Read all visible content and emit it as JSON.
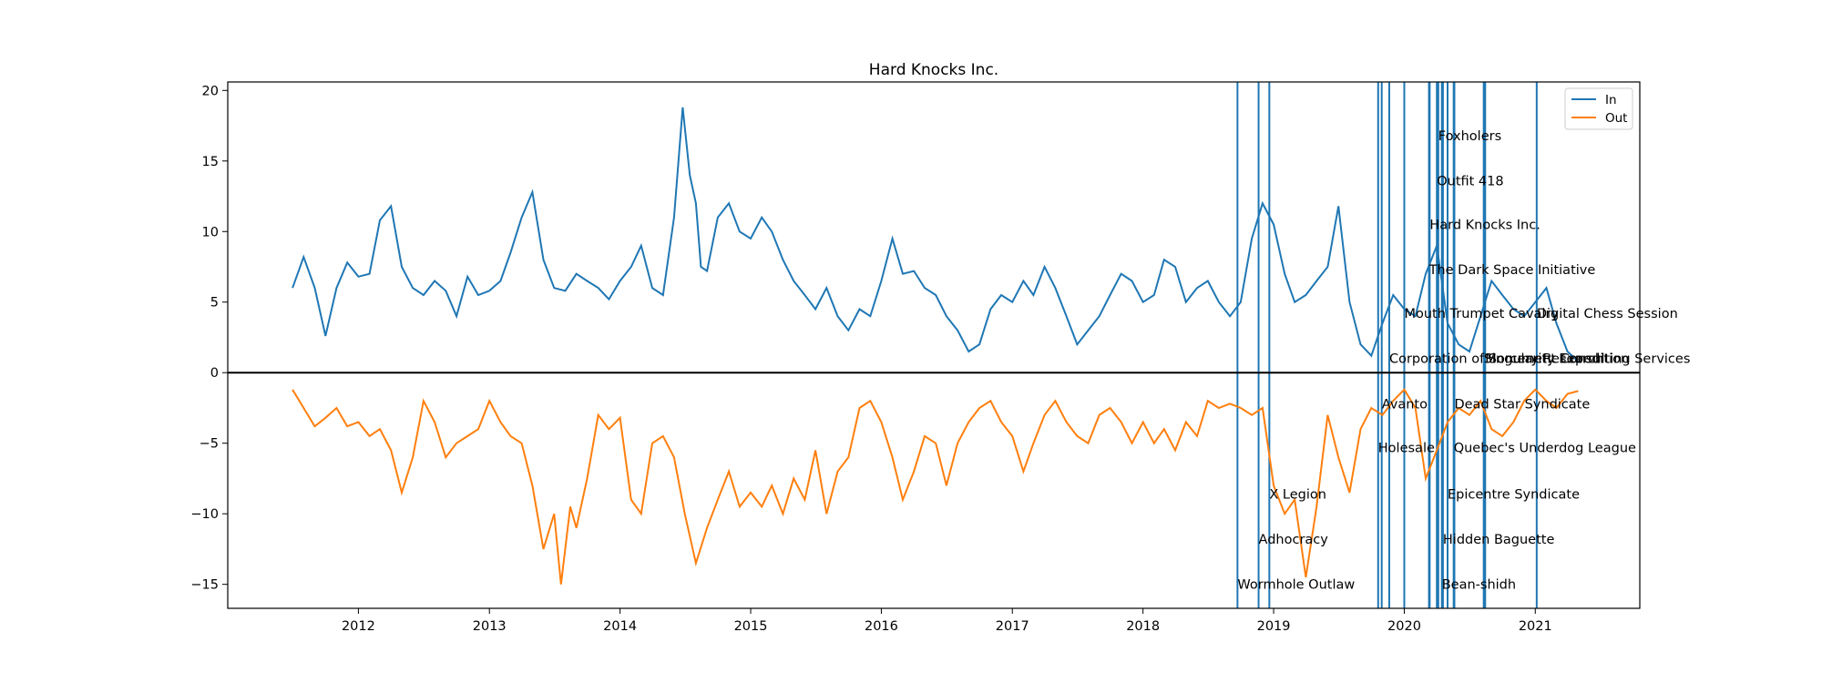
{
  "chart_data": {
    "type": "line",
    "title": "Hard Knocks Inc.",
    "xlabel": "",
    "ylabel": "",
    "xlim": [
      "2011-01-01",
      "2021-10-20"
    ],
    "ylim": [
      -16.7,
      20.6
    ],
    "x_ticks": [
      "2012",
      "2013",
      "2014",
      "2015",
      "2016",
      "2017",
      "2018",
      "2019",
      "2020",
      "2021"
    ],
    "y_ticks": [
      20,
      15,
      10,
      5,
      0,
      -5,
      -10,
      -15
    ],
    "grid": false,
    "legend_position": "top-right",
    "zero_line": true,
    "colors": {
      "in": "#1f77b4",
      "out": "#ff7f0e",
      "event": "#1f77b4",
      "zero": "#000000"
    },
    "series": [
      {
        "name": "In",
        "key": "in",
        "points": [
          [
            "2011-07-01",
            6.0
          ],
          [
            "2011-08-01",
            8.2
          ],
          [
            "2011-09-01",
            6.0
          ],
          [
            "2011-10-01",
            2.6
          ],
          [
            "2011-11-01",
            6.0
          ],
          [
            "2011-12-01",
            7.8
          ],
          [
            "2012-01-01",
            6.8
          ],
          [
            "2012-02-01",
            7.0
          ],
          [
            "2012-03-01",
            10.8
          ],
          [
            "2012-04-01",
            11.8
          ],
          [
            "2012-05-01",
            7.5
          ],
          [
            "2012-06-01",
            6.0
          ],
          [
            "2012-07-01",
            5.5
          ],
          [
            "2012-08-01",
            6.5
          ],
          [
            "2012-09-01",
            5.8
          ],
          [
            "2012-10-01",
            4.0
          ],
          [
            "2012-11-01",
            6.8
          ],
          [
            "2012-12-01",
            5.5
          ],
          [
            "2013-01-01",
            5.8
          ],
          [
            "2013-02-01",
            6.5
          ],
          [
            "2013-03-01",
            8.5
          ],
          [
            "2013-04-01",
            11.0
          ],
          [
            "2013-05-01",
            12.8
          ],
          [
            "2013-06-01",
            8.0
          ],
          [
            "2013-07-01",
            6.0
          ],
          [
            "2013-08-01",
            5.8
          ],
          [
            "2013-09-01",
            7.0
          ],
          [
            "2013-10-01",
            6.5
          ],
          [
            "2013-11-01",
            6.0
          ],
          [
            "2013-12-01",
            5.2
          ],
          [
            "2014-01-01",
            6.5
          ],
          [
            "2014-02-01",
            7.5
          ],
          [
            "2014-03-01",
            9.0
          ],
          [
            "2014-04-01",
            6.0
          ],
          [
            "2014-05-01",
            5.5
          ],
          [
            "2014-06-01",
            11.0
          ],
          [
            "2014-06-25",
            18.8
          ],
          [
            "2014-07-15",
            14.0
          ],
          [
            "2014-08-01",
            12.0
          ],
          [
            "2014-08-15",
            7.5
          ],
          [
            "2014-09-01",
            7.2
          ],
          [
            "2014-10-01",
            11.0
          ],
          [
            "2014-11-01",
            12.0
          ],
          [
            "2014-12-01",
            10.0
          ],
          [
            "2015-01-01",
            9.5
          ],
          [
            "2015-02-01",
            11.0
          ],
          [
            "2015-03-01",
            10.0
          ],
          [
            "2015-04-01",
            8.0
          ],
          [
            "2015-05-01",
            6.5
          ],
          [
            "2015-06-01",
            5.5
          ],
          [
            "2015-07-01",
            4.5
          ],
          [
            "2015-08-01",
            6.0
          ],
          [
            "2015-09-01",
            4.0
          ],
          [
            "2015-10-01",
            3.0
          ],
          [
            "2015-11-01",
            4.5
          ],
          [
            "2015-12-01",
            4.0
          ],
          [
            "2016-01-01",
            6.5
          ],
          [
            "2016-02-01",
            9.5
          ],
          [
            "2016-03-01",
            7.0
          ],
          [
            "2016-04-01",
            7.2
          ],
          [
            "2016-05-01",
            6.0
          ],
          [
            "2016-06-01",
            5.5
          ],
          [
            "2016-07-01",
            4.0
          ],
          [
            "2016-08-01",
            3.0
          ],
          [
            "2016-09-01",
            1.5
          ],
          [
            "2016-10-01",
            2.0
          ],
          [
            "2016-11-01",
            4.5
          ],
          [
            "2016-12-01",
            5.5
          ],
          [
            "2017-01-01",
            5.0
          ],
          [
            "2017-02-01",
            6.5
          ],
          [
            "2017-03-01",
            5.5
          ],
          [
            "2017-04-01",
            7.5
          ],
          [
            "2017-05-01",
            6.0
          ],
          [
            "2017-06-01",
            4.0
          ],
          [
            "2017-07-01",
            2.0
          ],
          [
            "2017-08-01",
            3.0
          ],
          [
            "2017-09-01",
            4.0
          ],
          [
            "2017-10-01",
            5.5
          ],
          [
            "2017-11-01",
            7.0
          ],
          [
            "2017-12-01",
            6.5
          ],
          [
            "2018-01-01",
            5.0
          ],
          [
            "2018-02-01",
            5.5
          ],
          [
            "2018-03-01",
            8.0
          ],
          [
            "2018-04-01",
            7.5
          ],
          [
            "2018-05-01",
            5.0
          ],
          [
            "2018-06-01",
            6.0
          ],
          [
            "2018-07-01",
            6.5
          ],
          [
            "2018-08-01",
            5.0
          ],
          [
            "2018-09-01",
            4.0
          ],
          [
            "2018-10-01",
            5.0
          ],
          [
            "2018-11-01",
            9.5
          ],
          [
            "2018-12-01",
            12.0
          ],
          [
            "2019-01-01",
            10.5
          ],
          [
            "2019-02-01",
            7.0
          ],
          [
            "2019-03-01",
            5.0
          ],
          [
            "2019-04-01",
            5.5
          ],
          [
            "2019-05-01",
            6.5
          ],
          [
            "2019-06-01",
            7.5
          ],
          [
            "2019-07-01",
            11.8
          ],
          [
            "2019-08-01",
            5.0
          ],
          [
            "2019-09-01",
            2.0
          ],
          [
            "2019-10-01",
            1.2
          ],
          [
            "2019-11-01",
            3.5
          ],
          [
            "2019-12-01",
            5.5
          ],
          [
            "2020-01-01",
            4.5
          ],
          [
            "2020-02-01",
            4.0
          ],
          [
            "2020-03-01",
            7.0
          ],
          [
            "2020-04-01",
            9.0
          ],
          [
            "2020-05-01",
            3.5
          ],
          [
            "2020-06-01",
            2.0
          ],
          [
            "2020-07-01",
            1.5
          ],
          [
            "2020-08-01",
            4.0
          ],
          [
            "2020-09-01",
            6.5
          ],
          [
            "2020-10-01",
            5.5
          ],
          [
            "2020-11-01",
            4.5
          ],
          [
            "2020-12-01",
            4.0
          ],
          [
            "2021-01-01",
            5.0
          ],
          [
            "2021-02-01",
            6.0
          ],
          [
            "2021-03-01",
            3.5
          ],
          [
            "2021-04-01",
            1.5
          ],
          [
            "2021-05-01",
            0.8
          ]
        ]
      },
      {
        "name": "Out",
        "key": "out",
        "points": [
          [
            "2011-07-01",
            -1.2
          ],
          [
            "2011-08-01",
            -2.5
          ],
          [
            "2011-09-01",
            -3.8
          ],
          [
            "2011-10-01",
            -3.2
          ],
          [
            "2011-11-01",
            -2.5
          ],
          [
            "2011-12-01",
            -3.8
          ],
          [
            "2012-01-01",
            -3.5
          ],
          [
            "2012-02-01",
            -4.5
          ],
          [
            "2012-03-01",
            -4.0
          ],
          [
            "2012-04-01",
            -5.5
          ],
          [
            "2012-05-01",
            -8.5
          ],
          [
            "2012-06-01",
            -6.0
          ],
          [
            "2012-07-01",
            -2.0
          ],
          [
            "2012-08-01",
            -3.5
          ],
          [
            "2012-09-01",
            -6.0
          ],
          [
            "2012-10-01",
            -5.0
          ],
          [
            "2012-11-01",
            -4.5
          ],
          [
            "2012-12-01",
            -4.0
          ],
          [
            "2013-01-01",
            -2.0
          ],
          [
            "2013-02-01",
            -3.5
          ],
          [
            "2013-03-01",
            -4.5
          ],
          [
            "2013-04-01",
            -5.0
          ],
          [
            "2013-05-01",
            -8.0
          ],
          [
            "2013-06-01",
            -12.5
          ],
          [
            "2013-07-01",
            -10.0
          ],
          [
            "2013-07-20",
            -15.0
          ],
          [
            "2013-08-15",
            -9.5
          ],
          [
            "2013-09-01",
            -11.0
          ],
          [
            "2013-10-01",
            -7.5
          ],
          [
            "2013-11-01",
            -3.0
          ],
          [
            "2013-12-01",
            -4.0
          ],
          [
            "2014-01-01",
            -3.2
          ],
          [
            "2014-02-01",
            -9.0
          ],
          [
            "2014-03-01",
            -10.0
          ],
          [
            "2014-04-01",
            -5.0
          ],
          [
            "2014-05-01",
            -4.5
          ],
          [
            "2014-06-01",
            -6.0
          ],
          [
            "2014-07-01",
            -10.0
          ],
          [
            "2014-08-01",
            -13.5
          ],
          [
            "2014-09-01",
            -11.0
          ],
          [
            "2014-10-01",
            -9.0
          ],
          [
            "2014-11-01",
            -7.0
          ],
          [
            "2014-12-01",
            -9.5
          ],
          [
            "2015-01-01",
            -8.5
          ],
          [
            "2015-02-01",
            -9.5
          ],
          [
            "2015-03-01",
            -8.0
          ],
          [
            "2015-04-01",
            -10.0
          ],
          [
            "2015-05-01",
            -7.5
          ],
          [
            "2015-06-01",
            -9.0
          ],
          [
            "2015-07-01",
            -5.5
          ],
          [
            "2015-08-01",
            -10.0
          ],
          [
            "2015-09-01",
            -7.0
          ],
          [
            "2015-10-01",
            -6.0
          ],
          [
            "2015-11-01",
            -2.5
          ],
          [
            "2015-12-01",
            -2.0
          ],
          [
            "2016-01-01",
            -3.5
          ],
          [
            "2016-02-01",
            -6.0
          ],
          [
            "2016-03-01",
            -9.0
          ],
          [
            "2016-04-01",
            -7.0
          ],
          [
            "2016-05-01",
            -4.5
          ],
          [
            "2016-06-01",
            -5.0
          ],
          [
            "2016-07-01",
            -8.0
          ],
          [
            "2016-08-01",
            -5.0
          ],
          [
            "2016-09-01",
            -3.5
          ],
          [
            "2016-10-01",
            -2.5
          ],
          [
            "2016-11-01",
            -2.0
          ],
          [
            "2016-12-01",
            -3.5
          ],
          [
            "2017-01-01",
            -4.5
          ],
          [
            "2017-02-01",
            -7.0
          ],
          [
            "2017-03-01",
            -5.0
          ],
          [
            "2017-04-01",
            -3.0
          ],
          [
            "2017-05-01",
            -2.0
          ],
          [
            "2017-06-01",
            -3.5
          ],
          [
            "2017-07-01",
            -4.5
          ],
          [
            "2017-08-01",
            -5.0
          ],
          [
            "2017-09-01",
            -3.0
          ],
          [
            "2017-10-01",
            -2.5
          ],
          [
            "2017-11-01",
            -3.5
          ],
          [
            "2017-12-01",
            -5.0
          ],
          [
            "2018-01-01",
            -3.5
          ],
          [
            "2018-02-01",
            -5.0
          ],
          [
            "2018-03-01",
            -4.0
          ],
          [
            "2018-04-01",
            -5.5
          ],
          [
            "2018-05-01",
            -3.5
          ],
          [
            "2018-06-01",
            -4.5
          ],
          [
            "2018-07-01",
            -2.0
          ],
          [
            "2018-08-01",
            -2.5
          ],
          [
            "2018-09-01",
            -2.2
          ],
          [
            "2018-10-01",
            -2.5
          ],
          [
            "2018-11-01",
            -3.0
          ],
          [
            "2018-12-01",
            -2.5
          ],
          [
            "2019-01-01",
            -8.0
          ],
          [
            "2019-02-01",
            -10.0
          ],
          [
            "2019-03-01",
            -9.0
          ],
          [
            "2019-04-01",
            -14.5
          ],
          [
            "2019-05-01",
            -9.5
          ],
          [
            "2019-06-01",
            -3.0
          ],
          [
            "2019-07-01",
            -6.0
          ],
          [
            "2019-08-01",
            -8.5
          ],
          [
            "2019-09-01",
            -4.0
          ],
          [
            "2019-10-01",
            -2.5
          ],
          [
            "2019-11-01",
            -3.0
          ],
          [
            "2019-12-01",
            -2.0
          ],
          [
            "2020-01-01",
            -1.2
          ],
          [
            "2020-02-01",
            -2.5
          ],
          [
            "2020-03-01",
            -7.5
          ],
          [
            "2020-04-01",
            -5.5
          ],
          [
            "2020-05-01",
            -3.5
          ],
          [
            "2020-06-01",
            -2.5
          ],
          [
            "2020-07-01",
            -3.0
          ],
          [
            "2020-08-01",
            -2.0
          ],
          [
            "2020-09-01",
            -4.0
          ],
          [
            "2020-10-01",
            -4.5
          ],
          [
            "2020-11-01",
            -3.5
          ],
          [
            "2020-12-01",
            -2.0
          ],
          [
            "2021-01-01",
            -1.2
          ],
          [
            "2021-02-01",
            -2.0
          ],
          [
            "2021-03-01",
            -2.5
          ],
          [
            "2021-04-01",
            -1.5
          ],
          [
            "2021-05-01",
            -1.3
          ]
        ]
      }
    ],
    "events": [
      {
        "date": "2018-09-22",
        "label": "Wormhole Outlaw",
        "y": -15.0
      },
      {
        "date": "2018-11-20",
        "label": "Adhocracy",
        "y": -11.8
      },
      {
        "date": "2018-12-20",
        "label": "X Legion",
        "y": -8.6
      },
      {
        "date": "2019-10-20",
        "label": "Holesale",
        "y": -5.3
      },
      {
        "date": "2019-10-30",
        "label": "Avanto",
        "y": -2.2
      },
      {
        "date": "2019-11-20",
        "label": "Corporation of Sorcery Research",
        "y": 1.0
      },
      {
        "date": "2020-01-01",
        "label": "Mouth Trumpet Cavalry",
        "y": 4.2
      },
      {
        "date": "2020-03-10",
        "label": "The Dark Space Initiative",
        "y": 7.3
      },
      {
        "date": "2020-03-12",
        "label": "Hard Knocks Inc.",
        "y": 10.5
      },
      {
        "date": "2020-04-01",
        "label": "Outfit 418",
        "y": 13.6
      },
      {
        "date": "2020-04-05",
        "label": "Foxholers",
        "y": 16.8
      },
      {
        "date": "2020-04-15",
        "label": "Bean-shidh",
        "y": -15.0
      },
      {
        "date": "2020-04-18",
        "label": "Hidden Baguette",
        "y": -11.8
      },
      {
        "date": "2020-05-01",
        "label": "Epicentre Syndicate",
        "y": -8.6
      },
      {
        "date": "2020-05-18",
        "label": "Quebec's Underdog League",
        "y": -5.3
      },
      {
        "date": "2020-05-20",
        "label": "Dead Star Syndicate",
        "y": -2.2
      },
      {
        "date": "2020-08-10",
        "label": "Singularity Expedition",
        "y": 1.0
      },
      {
        "date": "2020-08-14",
        "label": "Monument Consulting Services",
        "y": 1.0
      },
      {
        "date": "2021-01-05",
        "label": "Digital Chess Session",
        "y": 4.2
      }
    ]
  }
}
